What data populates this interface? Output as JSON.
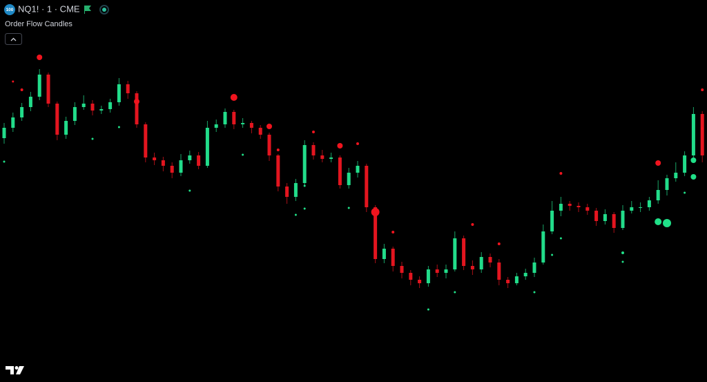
{
  "header": {
    "badge": "100",
    "symbol": "NQ1! · 1 · CME",
    "indicator": "Order Flow Candles"
  },
  "chart_data": {
    "type": "candlestick",
    "up_color": "#22dc8a",
    "down_color": "#e3151f",
    "ylim": [
      0,
      553
    ],
    "open": [
      353,
      368,
      383,
      398,
      413,
      445,
      403,
      358,
      378,
      398,
      403,
      393,
      395,
      405,
      431,
      418,
      373,
      325,
      321,
      313,
      303,
      321,
      328,
      313,
      368,
      373,
      391,
      373,
      375,
      368,
      358,
      328,
      283,
      268,
      288,
      343,
      328,
      323,
      325,
      285,
      303,
      313,
      253,
      178,
      193,
      168,
      158,
      148,
      143,
      163,
      158,
      163,
      208,
      168,
      163,
      181,
      173,
      148,
      143,
      153,
      158,
      173,
      218,
      248,
      258,
      255,
      253,
      248,
      233,
      243,
      223,
      248,
      253,
      253,
      263,
      278,
      295,
      303,
      328,
      388
    ],
    "high": [
      375,
      390,
      404,
      420,
      453,
      448,
      406,
      384,
      405,
      415,
      408,
      400,
      410,
      440,
      436,
      421,
      376,
      332,
      326,
      318,
      330,
      335,
      333,
      378,
      380,
      396,
      394,
      382,
      378,
      372,
      361,
      330,
      288,
      294,
      350,
      347,
      336,
      332,
      328,
      310,
      320,
      316,
      256,
      200,
      196,
      174,
      162,
      153,
      168,
      170,
      170,
      218,
      212,
      176,
      188,
      186,
      178,
      152,
      158,
      164,
      180,
      228,
      262,
      268,
      262,
      260,
      258,
      252,
      250,
      246,
      256,
      262,
      260,
      268,
      292,
      300,
      318,
      334,
      398,
      392
    ],
    "low": [
      345,
      362,
      378,
      392,
      408,
      398,
      350,
      352,
      372,
      394,
      386,
      388,
      390,
      400,
      410,
      368,
      318,
      314,
      305,
      295,
      298,
      316,
      308,
      310,
      362,
      368,
      366,
      368,
      360,
      352,
      320,
      276,
      258,
      262,
      284,
      322,
      318,
      318,
      280,
      280,
      296,
      246,
      172,
      172,
      160,
      150,
      140,
      136,
      138,
      152,
      150,
      160,
      162,
      155,
      158,
      166,
      140,
      136,
      140,
      148,
      152,
      170,
      214,
      240,
      248,
      246,
      242,
      226,
      228,
      216,
      220,
      244,
      246,
      248,
      258,
      270,
      290,
      298,
      322,
      318
    ],
    "close": [
      368,
      383,
      398,
      413,
      445,
      403,
      358,
      378,
      398,
      403,
      393,
      395,
      405,
      431,
      418,
      373,
      325,
      321,
      313,
      303,
      321,
      328,
      313,
      368,
      373,
      391,
      373,
      375,
      368,
      358,
      328,
      283,
      268,
      288,
      343,
      328,
      323,
      325,
      285,
      303,
      313,
      253,
      178,
      193,
      168,
      158,
      148,
      143,
      163,
      158,
      163,
      208,
      168,
      163,
      181,
      173,
      148,
      143,
      153,
      158,
      173,
      218,
      248,
      258,
      255,
      253,
      248,
      233,
      243,
      223,
      248,
      253,
      253,
      263,
      278,
      295,
      303,
      328,
      388,
      328
    ],
    "markers": [
      {
        "color": "#f0141e",
        "x": [
          1,
          2,
          4,
          15,
          26,
          30,
          31,
          35,
          38,
          40,
          42,
          44,
          53,
          56,
          63,
          74,
          79,
          79
        ],
        "values": [
          435,
          423,
          470,
          406,
          412,
          370,
          336,
          362,
          342,
          345,
          246,
          217,
          228,
          200,
          302,
          317,
          423,
          367
        ],
        "sizes": [
          1.5,
          2,
          4,
          4,
          5,
          4,
          2,
          2,
          4,
          2,
          6,
          2,
          2,
          2,
          2,
          4,
          2,
          2
        ]
      },
      {
        "color": "#20e088",
        "x": [
          0,
          10,
          13,
          21,
          27,
          33,
          34,
          34,
          39,
          48,
          51,
          60,
          62,
          63,
          70,
          70,
          74,
          75,
          77,
          78,
          78
        ],
        "values": [
          319,
          352,
          369,
          277,
          329,
          242,
          251,
          284,
          252,
          105,
          130,
          130,
          184,
          208,
          174,
          187,
          232,
          230,
          274,
          297,
          321
        ],
        "sizes": [
          1.5,
          1.5,
          1.5,
          1.5,
          1.5,
          1.5,
          1.5,
          1.5,
          1.5,
          1.5,
          1.5,
          1.5,
          1.5,
          1.5,
          1.5,
          2,
          5,
          6,
          1.5,
          4,
          4
        ]
      }
    ]
  }
}
